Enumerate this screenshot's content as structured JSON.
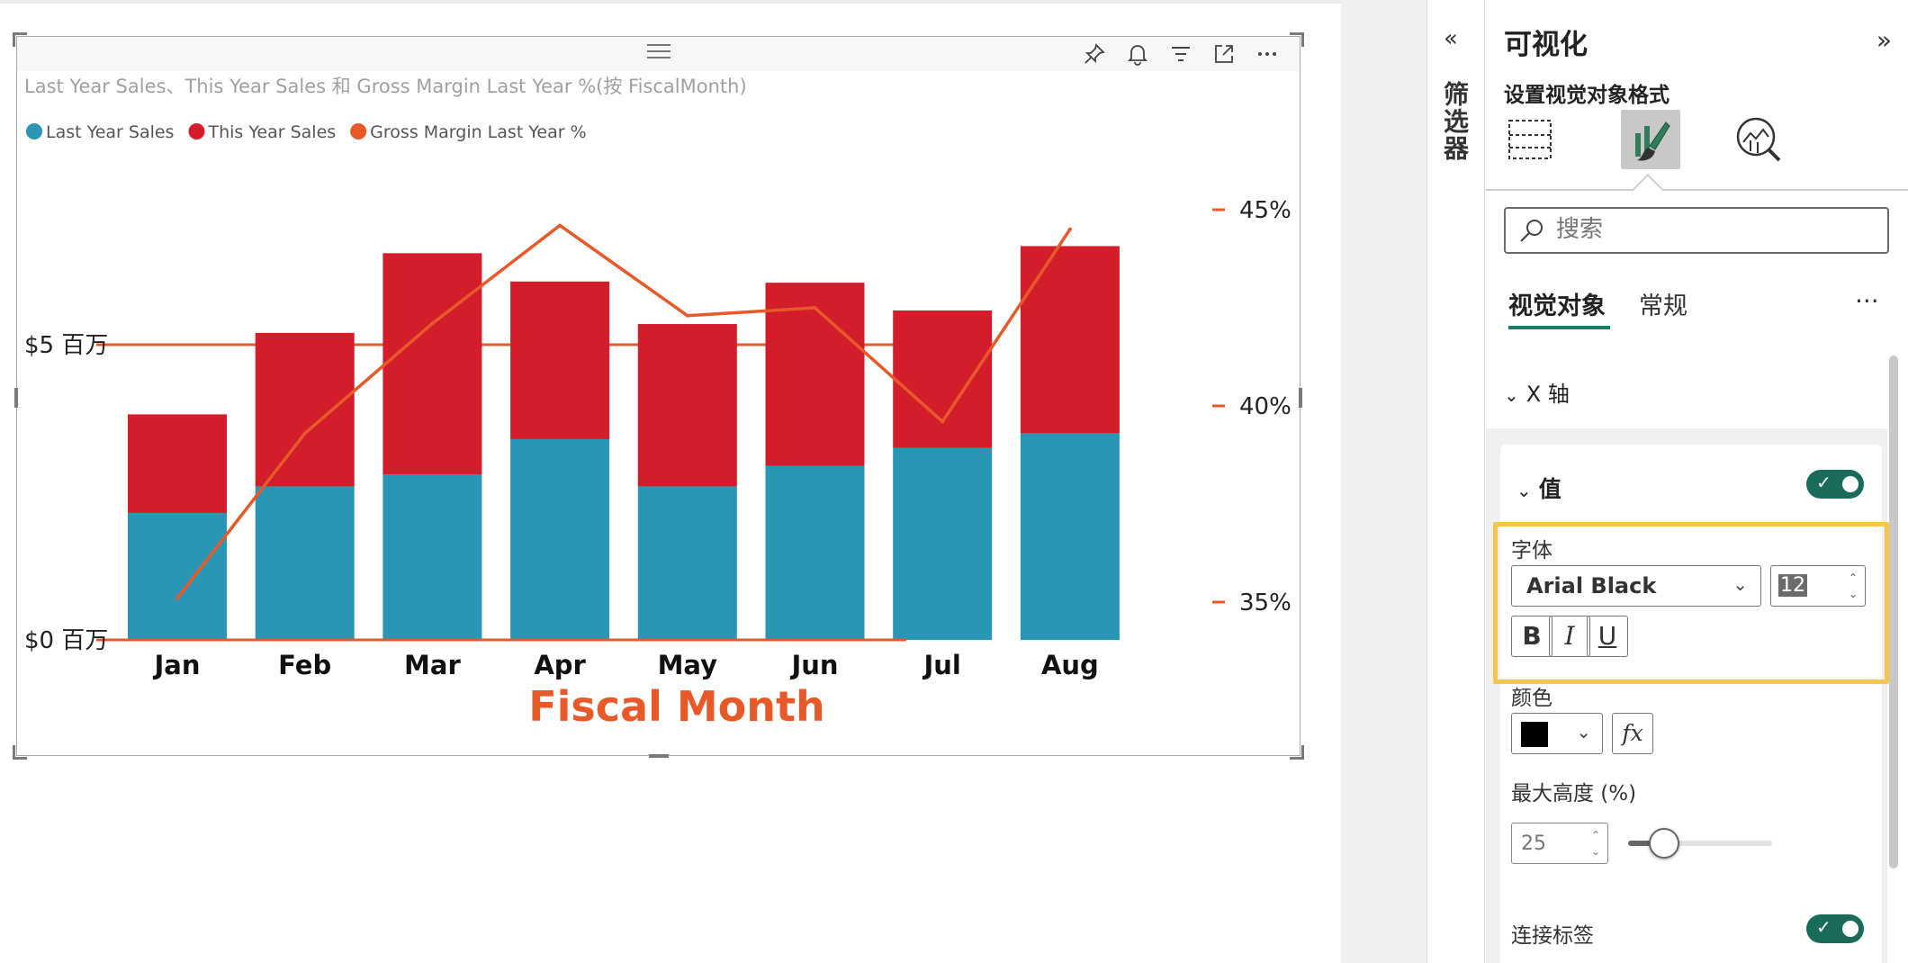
{
  "visual": {
    "subtitle": "Last Year Sales、This Year Sales 和 Gross Margin Last Year %(按 FiscalMonth)",
    "header_icons": [
      "pin-icon",
      "bell-icon",
      "filter-icon",
      "focus-mode-icon",
      "more-options-icon"
    ]
  },
  "chart_data": {
    "type": "bar",
    "stacked": true,
    "combo_line": true,
    "categories": [
      "Jan",
      "Feb",
      "Mar",
      "Apr",
      "May",
      "Jun",
      "Jul",
      "Aug"
    ],
    "series": [
      {
        "name": "Last Year Sales",
        "kind": "bar",
        "color": "#2a96b5",
        "values": [
          2.15,
          2.6,
          2.8,
          3.4,
          2.6,
          2.95,
          3.25,
          3.5
        ]
      },
      {
        "name": "This Year Sales",
        "kind": "bar",
        "color": "#d41d2a",
        "values": [
          1.67,
          2.6,
          3.75,
          2.67,
          2.75,
          3.1,
          2.33,
          3.17
        ]
      },
      {
        "name": "Gross Margin Last Year %",
        "kind": "line",
        "axis": "right",
        "color": "#e8592a",
        "values": [
          35.1,
          39.3,
          42.1,
          44.6,
          42.3,
          42.5,
          39.6,
          44.5
        ]
      }
    ],
    "y_left": {
      "ticks": [
        0,
        5
      ],
      "tick_labels": [
        "$0 百万",
        "$5 百万"
      ],
      "range": [
        0,
        7.5
      ]
    },
    "y_right": {
      "ticks": [
        35,
        40,
        45
      ],
      "tick_labels": [
        "35%",
        "40%",
        "45%"
      ],
      "range": [
        34,
        47
      ]
    },
    "xlabel": "Fiscal Month",
    "xlabel_color": "#e8592a",
    "gridline_color": "#e8592a",
    "legend_position": "top-left"
  },
  "filters_pane": {
    "label": "筛选器"
  },
  "format_pane": {
    "title": "可视化",
    "subtitle": "设置视觉对象格式",
    "search_placeholder": "搜索",
    "tab_visual": "视觉对象",
    "tab_general": "常规",
    "section_xaxis": "X 轴",
    "values_header": "值",
    "font_label": "字体",
    "font_family": "Arial Black",
    "font_size": "12",
    "bold_label": "B",
    "italic_label": "I",
    "underline_label": "U",
    "color_label": "颜色",
    "fx_label": "fx",
    "max_height_label": "最大高度 (%)",
    "max_height_value": "25",
    "max_height_fraction": 0.25,
    "concat_labels_label": "连接标签"
  }
}
